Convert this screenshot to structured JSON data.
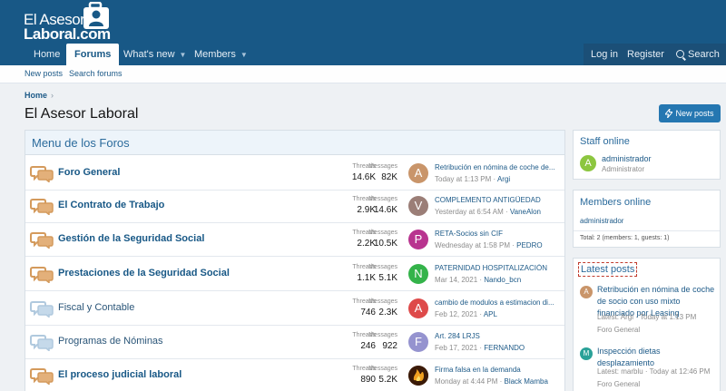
{
  "logo": {
    "line1": "El Asesor",
    "line2": "Laboral.com"
  },
  "nav": {
    "home": "Home",
    "forums": "Forums",
    "whats_new": "What's new",
    "members": "Members",
    "login": "Log in",
    "register": "Register",
    "search": "Search"
  },
  "subnav": {
    "new_posts": "New posts",
    "search_forums": "Search forums"
  },
  "breadcrumb": {
    "home": "Home",
    "sep": "›"
  },
  "page": {
    "title": "El Asesor Laboral",
    "new_posts_button": "New posts"
  },
  "forum_block": {
    "title": "Menu de los Foros",
    "threads_label": "Threads",
    "messages_label": "Messages",
    "forums": [
      {
        "name": "Foro General",
        "unread": true,
        "threads": "14.6K",
        "messages": "82K",
        "avatar_letter": "A",
        "avatar_color": "#c9956a",
        "last_title": "Retribución en nómina de coche de...",
        "last_time": "Today at 1:13 PM",
        "last_user": "Argi"
      },
      {
        "name": "El Contrato de Trabajo",
        "unread": true,
        "threads": "2.9K",
        "messages": "14.6K",
        "avatar_letter": "V",
        "avatar_color": "#9b7e77",
        "last_title": "COMPLEMENTO ANTIGÜEDAD",
        "last_time": "Yesterday at 6:54 AM",
        "last_user": "VaneAlon"
      },
      {
        "name": "Gestión de la Seguridad Social",
        "unread": true,
        "threads": "2.2K",
        "messages": "10.5K",
        "avatar_letter": "P",
        "avatar_color": "#b8348f",
        "last_title": "RETA-Socios sin CIF",
        "last_time": "Wednesday at 1:58 PM",
        "last_user": "PEDRO"
      },
      {
        "name": "Prestaciones de la Seguridad Social",
        "unread": true,
        "threads": "1.1K",
        "messages": "5.1K",
        "avatar_letter": "N",
        "avatar_color": "#34b34a",
        "last_title": "PATERNIDAD HOSPITALIZACIÓN",
        "last_time": "Mar 14, 2021",
        "last_user": "Nando_bcn"
      },
      {
        "name": "Fiscal y Contable",
        "unread": false,
        "threads": "746",
        "messages": "2.3K",
        "avatar_letter": "A",
        "avatar_color": "#de4a4a",
        "last_title": "cambio de modulos a estimacion di...",
        "last_time": "Feb 12, 2021",
        "last_user": "APL"
      },
      {
        "name": "Programas de Nóminas",
        "unread": false,
        "threads": "246",
        "messages": "922",
        "avatar_letter": "F",
        "avatar_color": "#9593cf",
        "last_title": "Art. 284 LRJS",
        "last_time": "Feb 17, 2021",
        "last_user": "FERNANDO"
      },
      {
        "name": "El proceso judicial laboral",
        "unread": true,
        "threads": "890",
        "messages": "5.2K",
        "avatar_letter": "",
        "avatar_color": "#7a3a10",
        "last_title": "Firma falsa en la demanda",
        "last_time": "Monday at 4:44 PM",
        "last_user": "Black Mamba"
      }
    ]
  },
  "staff_online": {
    "title": "Staff online",
    "user": "administrador",
    "role": "Administrator",
    "avatar_letter": "A",
    "avatar_color": "#8cc63f"
  },
  "members_online": {
    "title": "Members online",
    "user": "administrador",
    "total": "Total: 2 (members: 1, guests: 1)"
  },
  "latest_posts": {
    "title": "Latest posts",
    "posts": [
      {
        "avatar_letter": "A",
        "avatar_color": "#c9956a",
        "title": "Retribución en nómina de coche de socio con uso mixto financiado por Leasing",
        "latest_prefix": "Latest:",
        "user": "Argi",
        "time": "Today at 1:13 PM",
        "forum": "Foro General"
      },
      {
        "avatar_letter": "M",
        "avatar_color": "#2aa198",
        "title": "Inspección dietas desplazamiento",
        "latest_prefix": "Latest:",
        "user": "marblu",
        "time": "Today at 12:46 PM",
        "forum": "Foro General"
      }
    ]
  }
}
